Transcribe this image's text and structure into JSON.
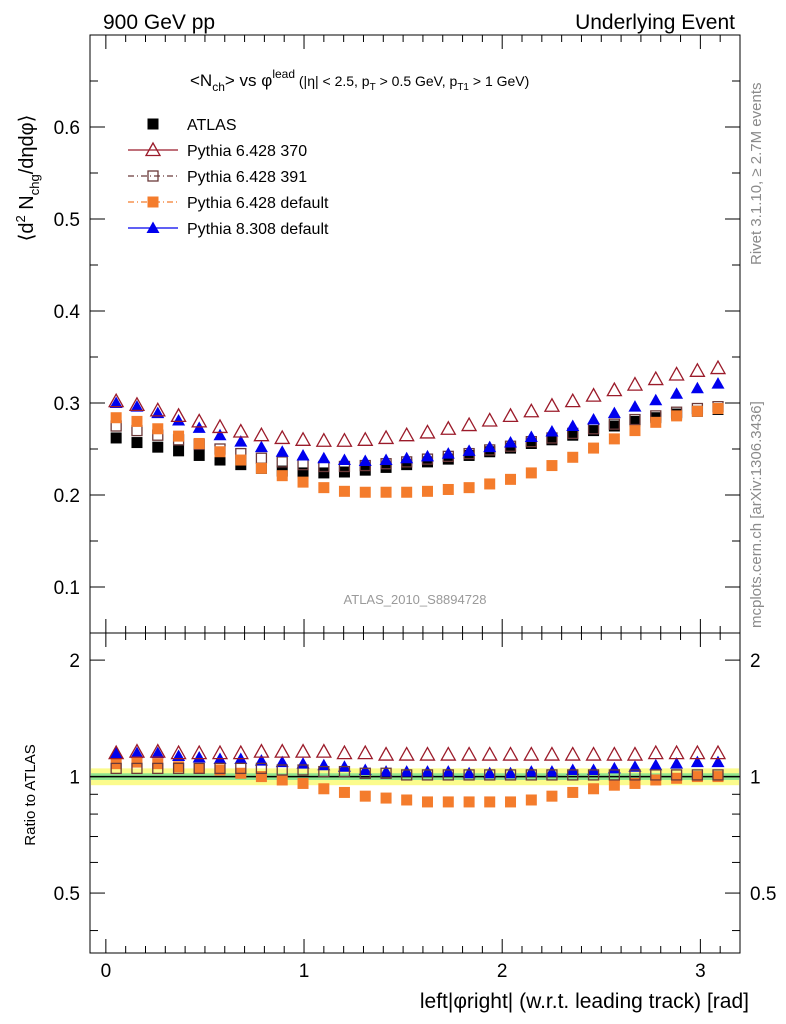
{
  "header": {
    "left": "900 GeV pp",
    "right": "Underlying Event"
  },
  "side_labels": {
    "rivet": "Rivet 3.1.10, ≥ 2.7M events",
    "mcplots": "mcplots.cern.ch [arXiv:1306.3436]"
  },
  "watermark": "ATLAS_2010_S8894728",
  "chart_data": [
    {
      "type": "scatter",
      "panel": "main",
      "title": "<Nch> vs φlead (|η| < 2.5, pT > 0.5 GeV, pT1 > 1 GeV)",
      "ylabel": "⟨d² Nchg/dηdφ⟩",
      "xlabel": "left|φright| (w.r.t. leading track) [rad]",
      "xlim": [
        -0.08,
        3.2
      ],
      "ylim": [
        0.05,
        0.7
      ],
      "y_ticks": [
        "0.1",
        "0.2",
        "0.3",
        "0.4",
        "0.5",
        "0.6"
      ],
      "legend_position": "top-left",
      "x": [
        0.052,
        0.157,
        0.262,
        0.367,
        0.471,
        0.576,
        0.681,
        0.785,
        0.89,
        0.995,
        1.1,
        1.204,
        1.309,
        1.414,
        1.518,
        1.623,
        1.728,
        1.833,
        1.937,
        2.042,
        2.147,
        2.251,
        2.356,
        2.461,
        2.566,
        2.67,
        2.775,
        2.88,
        2.985,
        3.089
      ],
      "series": [
        {
          "name": "ATLAS",
          "color": "#000000",
          "marker": "filled-square",
          "values": [
            0.262,
            0.257,
            0.252,
            0.248,
            0.243,
            0.238,
            0.233,
            0.229,
            0.226,
            0.224,
            0.224,
            0.225,
            0.227,
            0.23,
            0.233,
            0.236,
            0.239,
            0.243,
            0.247,
            0.251,
            0.256,
            0.26,
            0.265,
            0.27,
            0.275,
            0.28,
            0.284,
            0.288,
            0.291,
            0.293
          ]
        },
        {
          "name": "Pythia 6.428 370",
          "color": "#9b1b2a",
          "marker": "open-triangle",
          "values": [
            0.302,
            0.298,
            0.292,
            0.286,
            0.28,
            0.274,
            0.269,
            0.265,
            0.262,
            0.26,
            0.259,
            0.259,
            0.26,
            0.262,
            0.265,
            0.268,
            0.272,
            0.276,
            0.281,
            0.286,
            0.291,
            0.297,
            0.302,
            0.308,
            0.314,
            0.32,
            0.326,
            0.331,
            0.335,
            0.338
          ]
        },
        {
          "name": "Pythia 6.428 391",
          "color": "#6b3a3a",
          "marker": "open-square",
          "values": [
            0.275,
            0.27,
            0.265,
            0.26,
            0.255,
            0.25,
            0.245,
            0.24,
            0.236,
            0.233,
            0.231,
            0.231,
            0.232,
            0.234,
            0.236,
            0.239,
            0.242,
            0.245,
            0.249,
            0.253,
            0.258,
            0.262,
            0.267,
            0.272,
            0.277,
            0.282,
            0.286,
            0.29,
            0.294,
            0.296
          ]
        },
        {
          "name": "Pythia 6.428 default",
          "color": "#f47c2c",
          "marker": "filled-square",
          "values": [
            0.284,
            0.28,
            0.272,
            0.264,
            0.256,
            0.247,
            0.238,
            0.229,
            0.221,
            0.214,
            0.208,
            0.204,
            0.203,
            0.203,
            0.203,
            0.204,
            0.206,
            0.208,
            0.212,
            0.217,
            0.224,
            0.232,
            0.241,
            0.251,
            0.261,
            0.27,
            0.279,
            0.286,
            0.291,
            0.294
          ]
        },
        {
          "name": "Pythia 8.308 default",
          "color": "#0000ee",
          "marker": "filled-triangle",
          "values": [
            0.3,
            0.296,
            0.289,
            0.281,
            0.273,
            0.265,
            0.258,
            0.252,
            0.247,
            0.243,
            0.24,
            0.238,
            0.237,
            0.238,
            0.24,
            0.242,
            0.245,
            0.248,
            0.252,
            0.257,
            0.263,
            0.269,
            0.275,
            0.282,
            0.289,
            0.296,
            0.303,
            0.31,
            0.316,
            0.321
          ]
        }
      ]
    },
    {
      "type": "scatter",
      "panel": "ratio",
      "ylabel": "Ratio to ATLAS",
      "xlabel": "left|φright| (w.r.t. leading track) [rad]",
      "xlim": [
        -0.08,
        3.2
      ],
      "ylim": [
        0.35,
        2.35
      ],
      "y_scale": "log",
      "y_ticks": [
        "0.5",
        "1",
        "2"
      ],
      "x_ticks": [
        "0",
        "1",
        "2",
        "3"
      ],
      "band": {
        "inner": [
          0.98,
          1.02
        ],
        "outer": [
          0.95,
          1.05
        ],
        "inner_color": "#8ee58e",
        "outer_color": "#fbfb8c"
      },
      "x": [
        0.052,
        0.157,
        0.262,
        0.367,
        0.471,
        0.576,
        0.681,
        0.785,
        0.89,
        0.995,
        1.1,
        1.204,
        1.309,
        1.414,
        1.518,
        1.623,
        1.728,
        1.833,
        1.937,
        2.042,
        2.147,
        2.251,
        2.356,
        2.461,
        2.566,
        2.67,
        2.775,
        2.88,
        2.985,
        3.089
      ],
      "series": [
        {
          "name": "Pythia 6.428 370",
          "color": "#9b1b2a",
          "marker": "open-triangle",
          "values": [
            1.15,
            1.16,
            1.16,
            1.15,
            1.15,
            1.15,
            1.15,
            1.16,
            1.16,
            1.16,
            1.16,
            1.15,
            1.15,
            1.14,
            1.14,
            1.14,
            1.14,
            1.14,
            1.14,
            1.14,
            1.14,
            1.14,
            1.14,
            1.14,
            1.14,
            1.14,
            1.15,
            1.15,
            1.15,
            1.15
          ]
        },
        {
          "name": "Pythia 6.428 391",
          "color": "#6b3a3a",
          "marker": "open-square",
          "values": [
            1.05,
            1.05,
            1.05,
            1.05,
            1.05,
            1.05,
            1.05,
            1.05,
            1.04,
            1.04,
            1.03,
            1.03,
            1.02,
            1.02,
            1.01,
            1.01,
            1.01,
            1.01,
            1.01,
            1.01,
            1.01,
            1.01,
            1.01,
            1.01,
            1.01,
            1.01,
            1.01,
            1.01,
            1.01,
            1.01
          ]
        },
        {
          "name": "Pythia 6.428 default",
          "color": "#f47c2c",
          "marker": "filled-square",
          "values": [
            1.08,
            1.09,
            1.08,
            1.06,
            1.05,
            1.04,
            1.02,
            1.0,
            0.98,
            0.96,
            0.93,
            0.91,
            0.89,
            0.88,
            0.87,
            0.86,
            0.86,
            0.86,
            0.86,
            0.86,
            0.87,
            0.89,
            0.91,
            0.93,
            0.95,
            0.96,
            0.98,
            0.99,
            1.0,
            1.0
          ]
        },
        {
          "name": "Pythia 8.308 default",
          "color": "#0000ee",
          "marker": "filled-triangle",
          "values": [
            1.15,
            1.15,
            1.15,
            1.13,
            1.12,
            1.11,
            1.11,
            1.1,
            1.09,
            1.08,
            1.07,
            1.06,
            1.04,
            1.03,
            1.03,
            1.03,
            1.03,
            1.02,
            1.02,
            1.02,
            1.03,
            1.03,
            1.04,
            1.04,
            1.05,
            1.06,
            1.07,
            1.08,
            1.09,
            1.09
          ]
        }
      ]
    }
  ]
}
